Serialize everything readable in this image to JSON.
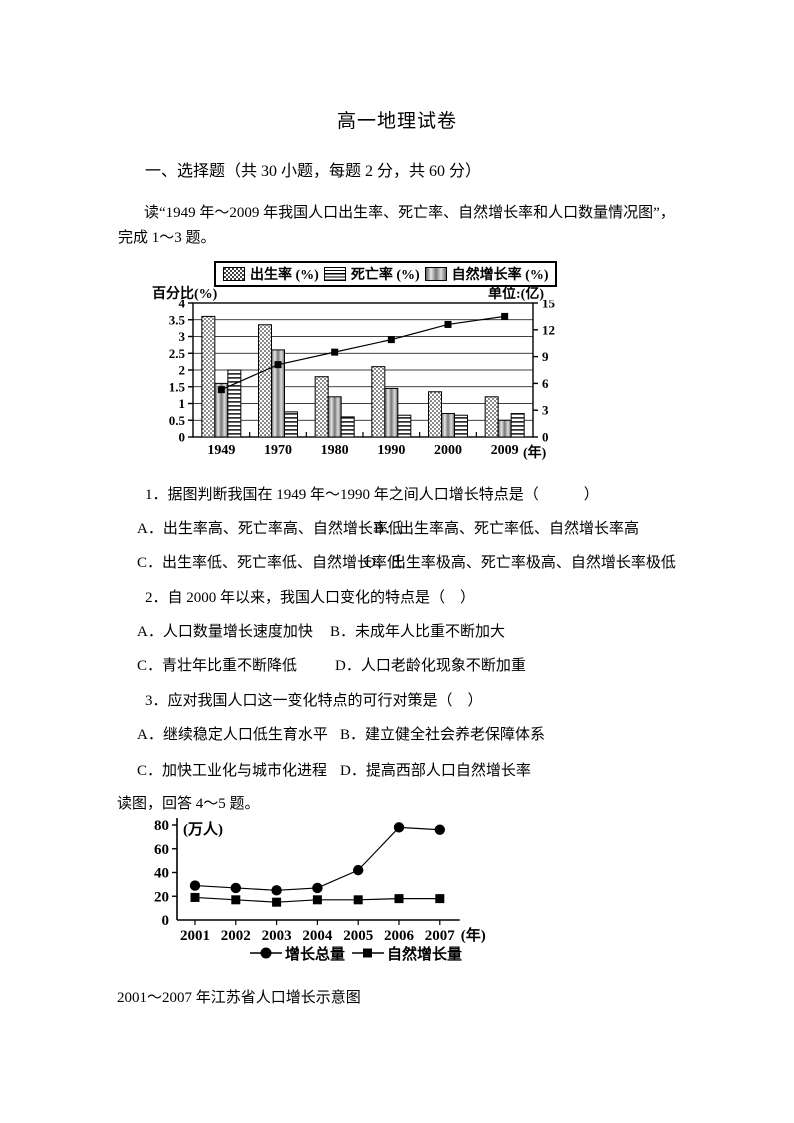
{
  "page": {
    "title": "高一地理试卷",
    "section_heading": "一、选择题（共 30 小题，每题 2 分，共 60 分）",
    "intro_line1": "读“1949 年～2009 年我国人口出生率、死亡率、自然增长率和人口数量情况图”，",
    "intro_line2": "完成 1～3 题。",
    "read_prompt": "读图，回答 4～5 题。",
    "chart2_caption": "2001～2007 年江苏省人口增长示意图"
  },
  "questions": [
    {
      "stem": "1．据图判断我国在 1949 年～1990 年之间人口增长特点是（　　　）",
      "options": [
        "A．出生率高、死亡率高、自然增长率低",
        "B．出生率高、死亡率低、自然增长率高",
        "C．出生率低、死亡率低、自然增长率低",
        "D．出生率极高、死亡率极高、自然增长率极低"
      ]
    },
    {
      "stem": "2．自 2000 年以来，我国人口变化的特点是（　）",
      "options": [
        "A．人口数量增长速度加快",
        "B．未成年人比重不断加大",
        "C．青壮年比重不断降低",
        "D．人口老龄化现象不断加重"
      ]
    },
    {
      "stem": "3．应对我国人口这一变化特点的可行对策是（　）",
      "options": [
        "A．继续稳定人口低生育水平",
        "B．建立健全社会养老保障体系",
        "C．加快工业化与城市化进程",
        "D．提高西部人口自然增长率"
      ]
    }
  ],
  "chart_data": [
    {
      "type": "bar",
      "left_axis_title": "百分比(%)",
      "right_axis_title": "单位:(亿)",
      "x_axis_title": "(年)",
      "categories": [
        "1949",
        "1970",
        "1980",
        "1990",
        "2000",
        "2009"
      ],
      "legend_items": [
        {
          "label": "出生率 (%)",
          "pattern": "dots"
        },
        {
          "label": "死亡率 (%)",
          "pattern": "hlines"
        },
        {
          "label": "自然增长率 (%)",
          "pattern": "gray"
        }
      ],
      "series": [
        {
          "name": "出生率 (%)",
          "type": "bar",
          "pattern": "dots",
          "values": [
            3.6,
            3.35,
            1.8,
            2.1,
            1.35,
            1.2
          ]
        },
        {
          "name": "自然增长率 (%)",
          "type": "bar",
          "pattern": "gray",
          "values": [
            1.6,
            2.6,
            1.2,
            1.45,
            0.7,
            0.5
          ]
        },
        {
          "name": "死亡率 (%)",
          "type": "bar",
          "pattern": "hlines",
          "values": [
            2.0,
            0.75,
            0.6,
            0.65,
            0.65,
            0.7
          ]
        },
        {
          "name": "人口数量(亿)",
          "type": "line",
          "axis": "right",
          "marker": "square",
          "values": [
            5.3,
            8.1,
            9.5,
            10.9,
            12.6,
            13.5
          ]
        }
      ],
      "left_axis": {
        "min": 0,
        "max": 4,
        "step": 0.5
      },
      "right_axis": {
        "min": 0,
        "max": 15,
        "step": 3
      },
      "grid": "horizontal"
    },
    {
      "type": "line",
      "y_axis_title": "(万人)",
      "x_axis_title": "(年)",
      "categories": [
        "2001",
        "2002",
        "2003",
        "2004",
        "2005",
        "2006",
        "2007"
      ],
      "series": [
        {
          "name": "增长总量",
          "marker": "circle",
          "values": [
            29,
            27,
            25,
            27,
            42,
            78,
            76
          ]
        },
        {
          "name": "自然增长量",
          "marker": "square",
          "values": [
            19,
            17,
            15,
            17,
            17,
            18,
            18
          ]
        }
      ],
      "ylim": [
        0,
        80
      ],
      "ystep": 20,
      "grid": "off",
      "legend_position": "bottom"
    }
  ]
}
